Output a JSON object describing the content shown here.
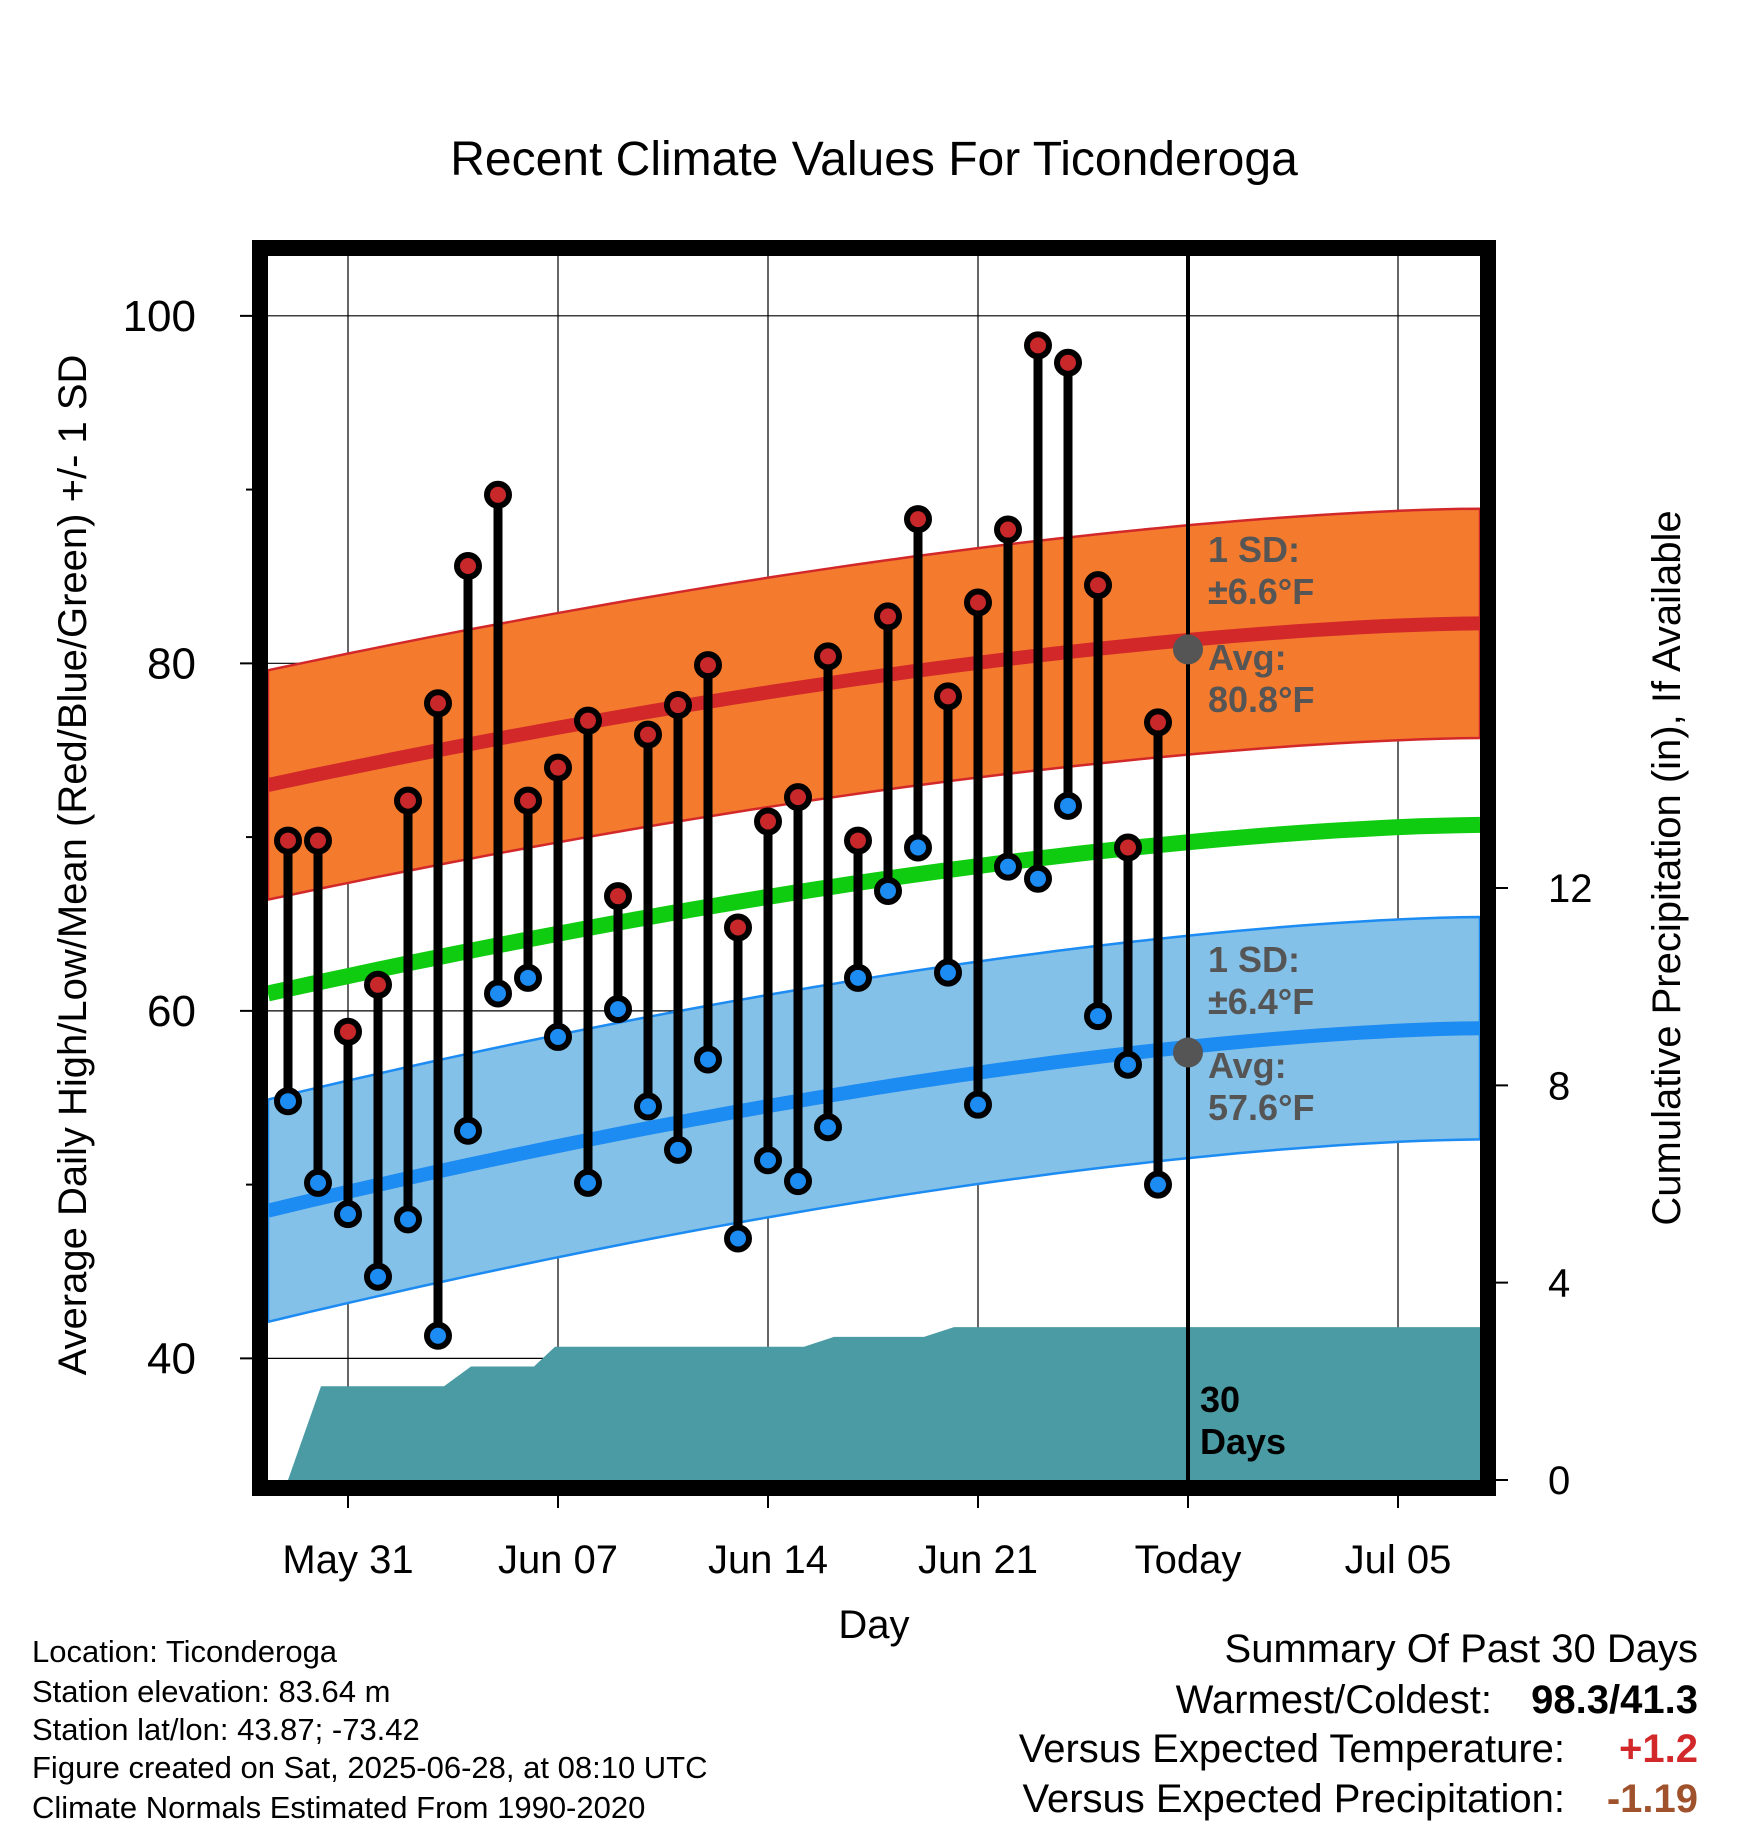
{
  "title": "Recent Climate Values For Ticonderoga",
  "chart_data": {
    "type": "line",
    "title": "Recent Climate Values For Ticonderoga",
    "xlabel": "Day",
    "ylabel_left": "Average Daily High/Low/Mean (Red/Blue/Green) +/- 1 SD",
    "ylabel_right": "Cumulative Precipitation (in), If Available",
    "x_ticks": [
      "May 31",
      "Jun 07",
      "Jun 14",
      "Jun 21",
      "Today",
      "Jul 05"
    ],
    "y_left_ticks": [
      "100",
      "80",
      "60",
      "40"
    ],
    "y_right_ticks": [
      "12",
      "8",
      "4",
      "0"
    ],
    "ylim_left": [
      33,
      103.5
    ],
    "ylim_right": [
      0,
      12
    ],
    "today_label": "30\nDays",
    "daily_dates": [
      "May 29",
      "May 30",
      "May 31",
      "Jun 01",
      "Jun 02",
      "Jun 03",
      "Jun 04",
      "Jun 05",
      "Jun 06",
      "Jun 07",
      "Jun 08",
      "Jun 09",
      "Jun 10",
      "Jun 11",
      "Jun 12",
      "Jun 13",
      "Jun 14",
      "Jun 15",
      "Jun 16",
      "Jun 17",
      "Jun 18",
      "Jun 19",
      "Jun 20",
      "Jun 21",
      "Jun 22",
      "Jun 23",
      "Jun 24",
      "Jun 25",
      "Jun 26",
      "Jun 27"
    ],
    "highs": [
      69.8,
      69.8,
      58.8,
      61.5,
      72.1,
      77.7,
      85.6,
      89.7,
      72.1,
      74.0,
      76.7,
      66.6,
      75.9,
      77.6,
      79.9,
      64.8,
      70.9,
      72.3,
      80.4,
      69.8,
      82.7,
      88.3,
      78.1,
      83.5,
      87.7,
      98.3,
      97.3,
      84.5,
      69.4,
      76.6
    ],
    "lows": [
      54.8,
      50.1,
      48.3,
      44.7,
      48.0,
      41.3,
      53.1,
      61.0,
      61.9,
      58.5,
      50.1,
      60.1,
      54.5,
      52.0,
      57.2,
      46.9,
      51.4,
      50.2,
      53.3,
      61.9,
      66.9,
      69.4,
      62.2,
      54.6,
      68.3,
      67.6,
      71.8,
      59.7,
      56.9,
      50.0
    ],
    "normal_high_avg": [
      73.0,
      82.3
    ],
    "normal_high_sd": 6.6,
    "normal_low_avg": [
      48.5,
      59.0
    ],
    "normal_low_sd": 6.4,
    "normal_mean_avg": [
      61.0,
      70.7
    ],
    "cumulative_precip": [
      [
        0,
        0
      ],
      [
        1.1,
        1.9
      ],
      [
        5.2,
        1.9
      ],
      [
        6.1,
        2.3
      ],
      [
        8.2,
        2.3
      ],
      [
        8.9,
        2.7
      ],
      [
        17.2,
        2.7
      ],
      [
        18.2,
        2.9
      ],
      [
        21.2,
        2.9
      ],
      [
        22.2,
        3.1
      ],
      [
        29.2,
        3.1
      ],
      [
        40.7,
        3.1
      ]
    ],
    "annotations": {
      "high_sd": "1 SD:\n±6.6°F",
      "high_avg": "Avg:\n80.8°F",
      "low_sd": "1 SD:\n±6.4°F",
      "low_avg": "Avg:\n57.6°F"
    },
    "colors": {
      "high_band": "#F47B2E",
      "high_line": "#D2282A",
      "low_band": "#84C1E8",
      "low_line": "#1C8BF2",
      "mean_line": "#10CC10",
      "precip": "#4A9BA3",
      "high_point": "#C8282A",
      "low_point": "#1C8BF2",
      "annotation": "#555555"
    }
  },
  "footer_left": [
    "Location: Ticonderoga",
    "Station elevation: 83.64 m",
    "Station lat/lon: 43.87; -73.42",
    "Figure created on Sat, 2025-06-28, at 08:10 UTC",
    "Climate Normals Estimated From 1990-2020"
  ],
  "summary": {
    "heading": "Summary Of Past 30 Days",
    "warm_cold_label": "Warmest/Coldest:",
    "warm_cold_value": "98.3/41.3",
    "temp_label": "Versus Expected Temperature:",
    "temp_value": "+1.2",
    "precip_label": "Versus Expected Precipitation:",
    "precip_value": "-1.19",
    "temp_color": "#D2282A",
    "precip_color": "#A0522D"
  }
}
